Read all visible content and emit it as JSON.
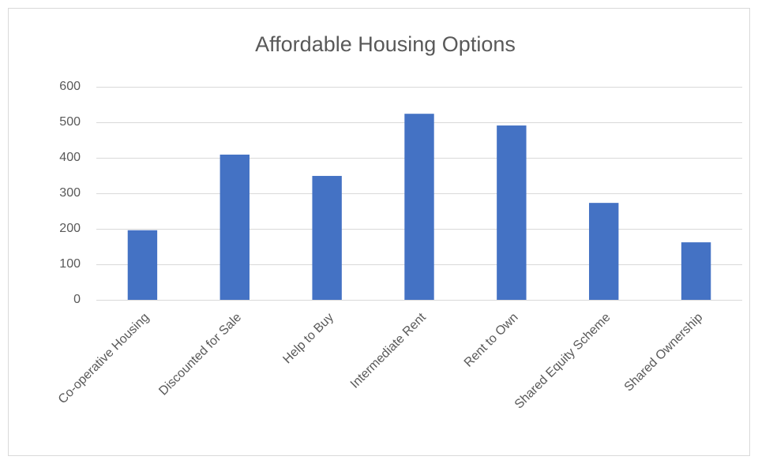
{
  "chart_data": {
    "type": "bar",
    "title": "Affordable Housing Options",
    "categories": [
      "Co-operative Housing",
      "Discounted for Sale",
      "Help to Buy",
      "Intermediate Rent",
      "Rent to Own",
      "Shared Equity Scheme",
      "Shared Ownership"
    ],
    "values": [
      196,
      409,
      349,
      524,
      491,
      273,
      162
    ],
    "color": "#4472c4",
    "ylim": [
      0,
      600
    ],
    "yticks": [
      0,
      100,
      200,
      300,
      400,
      500,
      600
    ],
    "grid": true
  }
}
